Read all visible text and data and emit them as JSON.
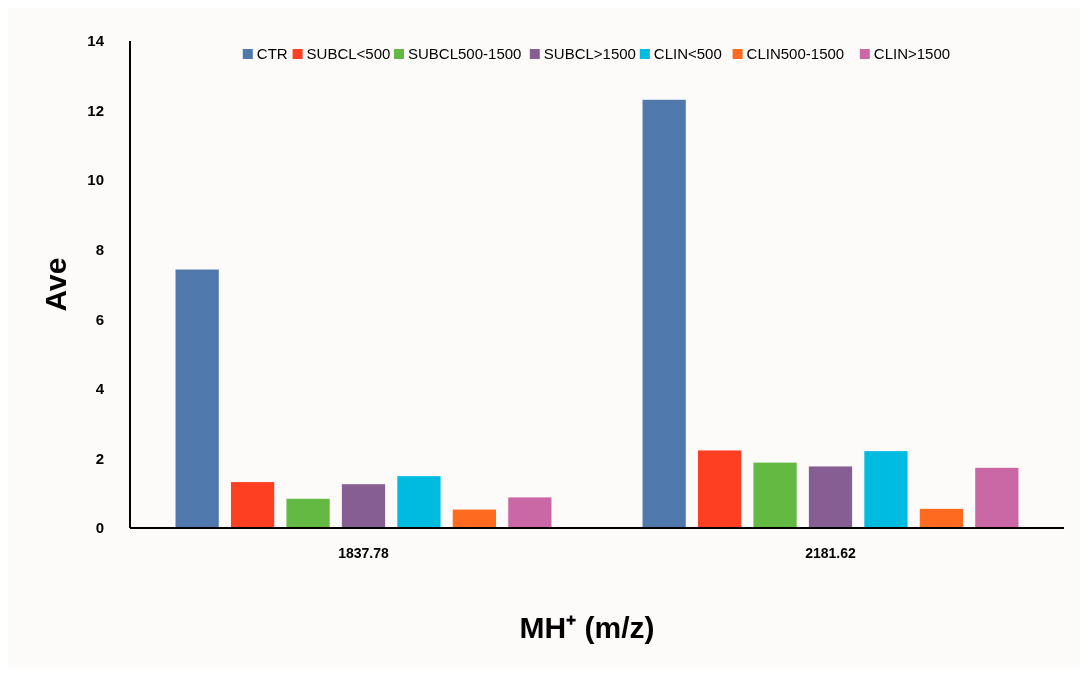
{
  "chart_data": {
    "type": "bar",
    "xlabel": "MH⁺ (m/z)",
    "ylabel": "Ave",
    "categories": [
      "1837.78",
      "2181.62"
    ],
    "series": [
      {
        "name": "CTR",
        "color": "#4f79ad",
        "values": [
          7.43,
          12.31
        ]
      },
      {
        "name": "SUBCL<500",
        "color": "#ff3f22",
        "values": [
          1.32,
          2.23
        ]
      },
      {
        "name": "SUBCL500-1500",
        "color": "#64b942",
        "values": [
          0.84,
          1.88
        ]
      },
      {
        "name": "SUBCL>1500",
        "color": "#875e94",
        "values": [
          1.26,
          1.77
        ]
      },
      {
        "name": "CLIN<500",
        "color": "#00bbe0",
        "values": [
          1.49,
          2.21
        ]
      },
      {
        "name": "CLIN500-1500",
        "color": "#ff6a21",
        "values": [
          0.53,
          0.55
        ]
      },
      {
        "name": "CLIN>1500",
        "color": "#ca68a5",
        "values": [
          0.88,
          1.73
        ]
      }
    ],
    "ylim": [
      0,
      14
    ],
    "yticks": [
      0,
      2,
      4,
      6,
      8,
      10,
      12,
      14
    ],
    "legend": "top",
    "grid": false
  }
}
